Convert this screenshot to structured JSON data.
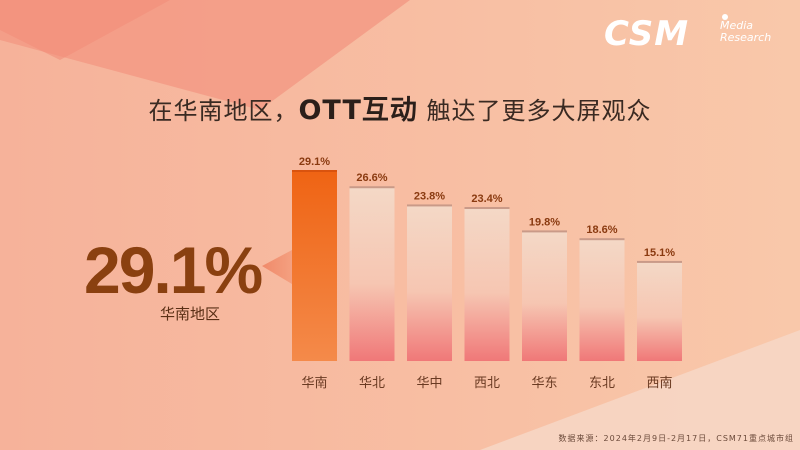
{
  "logo": {
    "main": "CSM",
    "sub_line1": "Media",
    "sub_line2": "Research"
  },
  "headline": {
    "part1": "在华南地区，",
    "part2": "OTT互动",
    "part3": "触达了更多大屏观众"
  },
  "callout": {
    "value": "29.1%",
    "label": "华南地区"
  },
  "source": "数据来源：2024年2月9日-2月17日，CSM71重点城市组",
  "colors": {
    "background": "#f8c4a6",
    "highlight_bar": "#f06a1e",
    "bar_top": "#f4d8c6",
    "bar_bottom": "#f07878",
    "value_label": "#8a3a10"
  },
  "chart_data": {
    "type": "bar",
    "categories": [
      "华南",
      "华北",
      "华中",
      "西北",
      "华东",
      "东北",
      "西南"
    ],
    "values": [
      29.1,
      26.6,
      23.8,
      23.4,
      19.8,
      18.6,
      15.1
    ],
    "value_labels": [
      "29.1%",
      "26.6%",
      "23.8%",
      "23.4%",
      "19.8%",
      "18.6%",
      "15.1%"
    ],
    "highlight_index": 0,
    "unit": "%",
    "ylim": [
      0,
      29.1
    ],
    "grid": false,
    "legend": "none"
  }
}
